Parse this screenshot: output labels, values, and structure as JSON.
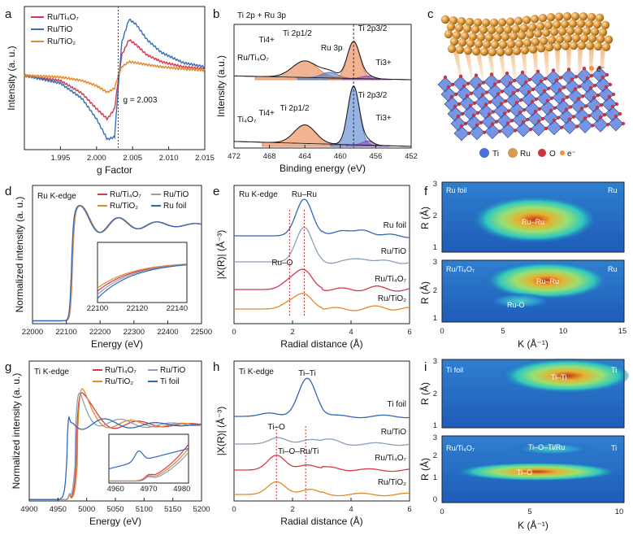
{
  "colors": {
    "ti4o7": "#d63a4a",
    "tio": "#3a6fb5",
    "tio2": "#e08a2a",
    "foil": "#3266b8",
    "grey": "#8aa0b8",
    "ti_fit": "#e8743a",
    "ru3p": "#3f74c9",
    "ti3": "#8a3fc9",
    "ti4": "#e0a030",
    "tiatom": "#4a72d8",
    "ruatom": "#d89a4e",
    "oatom": "#c8353a",
    "electron": "#ff8c3a"
  },
  "panel_letters": [
    "a",
    "b",
    "c",
    "d",
    "e",
    "f",
    "g",
    "h",
    "i"
  ],
  "panel_c": {
    "legend": [
      {
        "label": "Ti",
        "color": "#4a72d8"
      },
      {
        "label": "Ru",
        "color": "#d89a4e"
      },
      {
        "label": "O",
        "color": "#c8353a"
      },
      {
        "label": "e⁻",
        "color": "#ff8c3a"
      }
    ],
    "electron_label": "e⁻"
  },
  "panel_f": {
    "xlabel": "K (Å⁻¹)",
    "ylabel": "R (Å)",
    "top": {
      "left": "Ru foil",
      "right": "Ru",
      "peak": "Ru–Ru"
    },
    "bottom": {
      "left": "Ru/Ti₄O₇",
      "right": "Ru",
      "peak": "Ru–Ru",
      "secondary": "Ru-O"
    },
    "xticks": [
      "0",
      "5",
      "10",
      "15"
    ],
    "yticks": [
      "1",
      "2",
      "3"
    ]
  },
  "panel_i": {
    "xlabel": "K (Å⁻¹)",
    "ylabel": "R (Å)",
    "top": {
      "left": "Ti foil",
      "right": "Ti",
      "peak": "Ti–Ti"
    },
    "bottom": {
      "left": "Ru/Ti₄O₇",
      "right": "Ti",
      "peak": "Ti–O",
      "secondary": "Ti–O–Ti/Ru"
    },
    "xticks": [
      "0",
      "5",
      "10"
    ],
    "yticks": [
      "0",
      "1",
      "2",
      "3"
    ]
  },
  "chart_data": [
    {
      "panel": "a",
      "type": "line",
      "title": "",
      "xlabel": "g Factor",
      "ylabel": "Intensity (a. u.)",
      "xlim": [
        1.99,
        2.015
      ],
      "xticks": [
        1.995,
        2.0,
        2.005,
        2.01,
        2.015
      ],
      "tick_labels": [
        "1.995",
        "2.000",
        "2.005",
        "2.010",
        "2.015"
      ],
      "annotation": "g = 2.003",
      "marker_x": 2.003,
      "series": [
        {
          "name": "Ru/Ti₄O₇",
          "color": "#d63a4a",
          "x": [
            1.99,
            1.995,
            1.998,
            2.0,
            2.0015,
            2.0025,
            2.003,
            2.0035,
            2.0045,
            2.0055,
            2.007,
            2.009,
            2.012,
            2.015
          ],
          "y": [
            -0.05,
            -0.15,
            -0.4,
            -0.7,
            -0.9,
            -0.7,
            -0.15,
            0.35,
            0.65,
            0.55,
            0.35,
            0.22,
            0.12,
            0.08
          ]
        },
        {
          "name": "Ru/TiO",
          "color": "#3a6fb5",
          "x": [
            1.99,
            1.995,
            1.998,
            2.0,
            2.0015,
            2.0025,
            2.003,
            2.0035,
            2.0045,
            2.0055,
            2.007,
            2.009,
            2.012,
            2.015
          ],
          "y": [
            -0.05,
            -0.2,
            -0.5,
            -0.9,
            -1.3,
            -1.25,
            -0.3,
            0.6,
            1.05,
            0.95,
            0.65,
            0.4,
            0.2,
            0.12
          ]
        },
        {
          "name": "Ru/TiO₂",
          "color": "#e08a2a",
          "x": [
            1.99,
            1.995,
            1.998,
            2.0,
            2.0015,
            2.0025,
            2.003,
            2.0035,
            2.0045,
            2.0055,
            2.007,
            2.009,
            2.012,
            2.015
          ],
          "y": [
            -0.05,
            -0.08,
            -0.15,
            -0.25,
            -0.38,
            -0.3,
            -0.05,
            0.12,
            0.22,
            0.2,
            0.16,
            0.12,
            0.08,
            0.05
          ]
        }
      ],
      "ylim": [
        -1.5,
        1.3
      ]
    },
    {
      "panel": "b",
      "type": "line",
      "title": "Ti 2p + Ru 3p",
      "xlabel": "Binding energy (eV)",
      "ylabel": "Intensity (a.u.)",
      "xlim": [
        472,
        452
      ],
      "xticks": [
        472,
        468,
        464,
        460,
        456,
        452
      ],
      "tick_labels": [
        "472",
        "468",
        "464",
        "460",
        "456",
        "452"
      ],
      "marker_x": 458.5,
      "labels": {
        "ti2p12": "Ti 2p1/2",
        "ti2p32": "Ti 2p3/2",
        "ru3p": "Ru 3p",
        "ti3": "Ti3+",
        "ti4": "Ti4+",
        "top_sample": "Ru/Ti₄O₇",
        "bottom_sample": "Ti₄O₇"
      },
      "series": [
        {
          "name": "Ru/Ti₄O₇",
          "color": "#222222",
          "peaks": [
            {
              "center": 464.0,
              "height": 0.35,
              "width": 1.4
            },
            {
              "center": 461.2,
              "height": 0.12,
              "width": 0.9
            },
            {
              "center": 458.5,
              "height": 0.78,
              "width": 0.7
            },
            {
              "center": 456.9,
              "height": 0.06,
              "width": 0.7
            }
          ]
        },
        {
          "name": "Ti₄O₇",
          "color": "#222222",
          "peaks": [
            {
              "center": 464.0,
              "height": 0.3,
              "width": 1.2
            },
            {
              "center": 458.5,
              "height": 0.95,
              "width": 0.65
            },
            {
              "center": 456.9,
              "height": 0.07,
              "width": 0.6
            }
          ]
        }
      ]
    },
    {
      "panel": "d",
      "type": "line",
      "title": "Ru K-edge",
      "xlabel": "Energy (eV)",
      "ylabel": "Normalized intensity (a. u.)",
      "xlim": [
        22000,
        22500
      ],
      "xticks": [
        22000,
        22100,
        22200,
        22300,
        22400,
        22500
      ],
      "tick_labels": [
        "22000",
        "22100",
        "22200",
        "22300",
        "22400",
        "22500"
      ],
      "edge": 22117,
      "inset": {
        "xlim": [
          22100,
          22145
        ],
        "xticks": [
          22100,
          22120,
          22140
        ],
        "tick_labels": [
          "22100",
          "22120",
          "22140"
        ]
      },
      "series": [
        {
          "name": "Ru/Ti₄O₇",
          "color": "#d63a4a",
          "shift": 0.0
        },
        {
          "name": "Ru/TiO₂",
          "color": "#e08a2a",
          "shift": 1.0
        },
        {
          "name": "Ru/TiO",
          "color": "#8aa0b8",
          "shift": -1.0
        },
        {
          "name": "Ru foil",
          "color": "#3266b8",
          "shift": -2.0
        }
      ]
    },
    {
      "panel": "e",
      "type": "line",
      "title": "Ru K-edge",
      "xlabel": "Radial distance (Å)",
      "ylabel": "|X(R)| (Å⁻³)",
      "xlim": [
        0,
        6
      ],
      "xticks": [
        0,
        2,
        4,
        6
      ],
      "tick_labels": [
        "0",
        "2",
        "4",
        "6"
      ],
      "markers": [
        2.4,
        1.9
      ],
      "peak_labels": [
        "Ru–Ru",
        "Ru–O"
      ],
      "series": [
        {
          "name": "Ru foil",
          "color": "#3266b8",
          "peaks": [
            {
              "center": 2.4,
              "height": 0.9
            },
            {
              "center": 3.6,
              "height": 0.15
            },
            {
              "center": 4.5,
              "height": 0.15
            }
          ]
        },
        {
          "name": "Ru/TiO",
          "color": "#8aa0b8",
          "peaks": [
            {
              "center": 2.4,
              "height": 0.85
            },
            {
              "center": 4.4,
              "height": 0.1
            }
          ]
        },
        {
          "name": "Ru/Ti₄O₇",
          "color": "#d63a4a",
          "peaks": [
            {
              "center": 1.9,
              "height": 0.2
            },
            {
              "center": 2.4,
              "height": 0.45
            },
            {
              "center": 4.8,
              "height": 0.05
            }
          ]
        },
        {
          "name": "Ru/TiO₂",
          "color": "#e08a2a",
          "peaks": [
            {
              "center": 1.9,
              "height": 0.15
            },
            {
              "center": 2.4,
              "height": 0.35
            },
            {
              "center": 5.0,
              "height": 0.05
            }
          ]
        }
      ]
    },
    {
      "panel": "g",
      "type": "line",
      "title": "Ti K-edge",
      "xlabel": "Energy (eV)",
      "ylabel": "Normalized intensity (a. u.)",
      "xlim": [
        4900,
        5200
      ],
      "xticks": [
        4900,
        4950,
        5000,
        5050,
        5100,
        5150,
        5200
      ],
      "tick_labels": [
        "4900",
        "4950",
        "5000",
        "5050",
        "5100",
        "5150",
        "5200"
      ],
      "inset": {
        "xlim": [
          4958,
          4982
        ],
        "xticks": [
          4960,
          4970,
          4980
        ],
        "tick_labels": [
          "4960",
          "4970",
          "4980"
        ]
      },
      "series": [
        {
          "name": "Ru/Ti₄O₇",
          "color": "#d63a4a",
          "edge": 4982
        },
        {
          "name": "Ru/TiO₂",
          "color": "#e08a2a",
          "edge": 4984
        },
        {
          "name": "Ru/TiO",
          "color": "#8aa0b8",
          "edge": 4980
        },
        {
          "name": "Ti foil",
          "color": "#3266b8",
          "edge": 4966
        }
      ]
    },
    {
      "panel": "h",
      "type": "line",
      "title": "Ti K-edge",
      "xlabel": "Radial distance (Å)",
      "ylabel": "|X(R)| (Å⁻³)",
      "xlim": [
        0,
        6
      ],
      "xticks": [
        0,
        2,
        4,
        6
      ],
      "tick_labels": [
        "0",
        "2",
        "4",
        "6"
      ],
      "markers": [
        1.45,
        2.45
      ],
      "peak_labels": [
        "Ti–Ti",
        "Ti–O",
        "Ti–O–Ru/Ti"
      ],
      "series": [
        {
          "name": "Ti foil",
          "color": "#3266b8",
          "peaks": [
            {
              "center": 2.5,
              "height": 0.9
            },
            {
              "center": 1.2,
              "height": 0.08
            }
          ]
        },
        {
          "name": "Ru/TiO",
          "color": "#8aa0b8",
          "peaks": [
            {
              "center": 1.5,
              "height": 0.15
            },
            {
              "center": 2.6,
              "height": 0.1
            },
            {
              "center": 3.3,
              "height": 0.08
            }
          ]
        },
        {
          "name": "Ru/Ti₄O₇",
          "color": "#d63a4a",
          "peaks": [
            {
              "center": 1.45,
              "height": 0.35
            },
            {
              "center": 2.5,
              "height": 0.12
            },
            {
              "center": 3.4,
              "height": 0.06
            }
          ]
        },
        {
          "name": "Ru/TiO₂",
          "color": "#e08a2a",
          "peaks": [
            {
              "center": 1.45,
              "height": 0.3
            },
            {
              "center": 2.6,
              "height": 0.12
            }
          ]
        }
      ]
    }
  ]
}
